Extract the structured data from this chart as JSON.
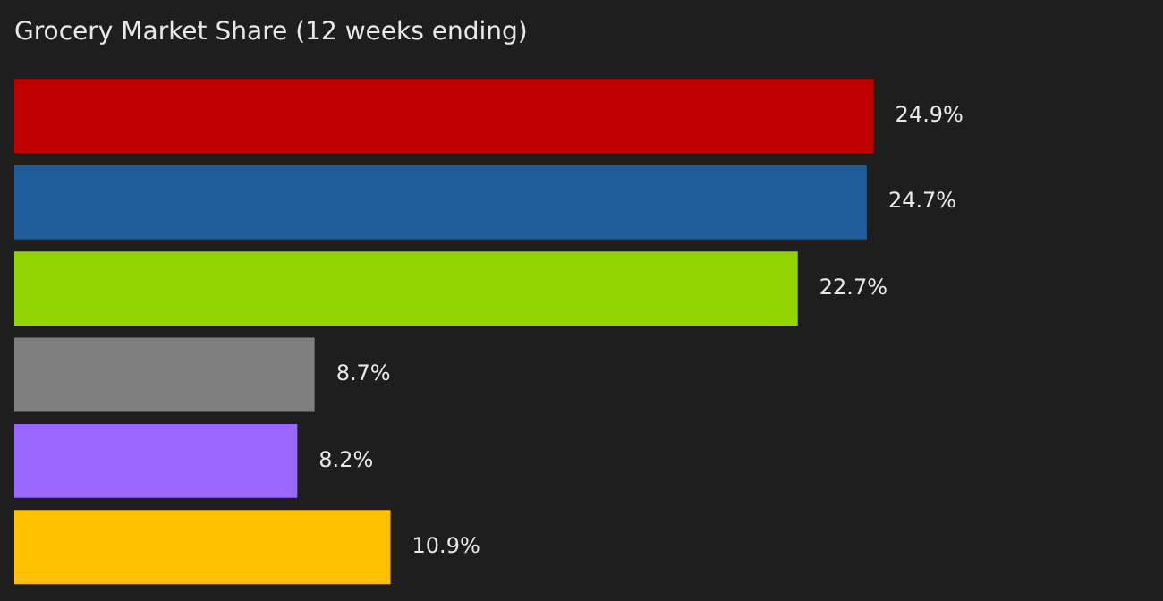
{
  "chart_data": {
    "type": "bar",
    "orientation": "horizontal",
    "title": "Grocery Market Share (12 weeks ending)",
    "categories": [
      null,
      null,
      null,
      null,
      null,
      null
    ],
    "values": [
      24.9,
      24.7,
      22.7,
      8.7,
      8.2,
      10.9
    ],
    "colors": [
      "#c00000",
      "#1f5c99",
      "#92d400",
      "#7f7f7f",
      "#9966ff",
      "#ffc000"
    ],
    "value_labels": [
      "24.9%",
      "24.7%",
      "22.7%",
      "8.7%",
      "8.2%",
      "10.9%"
    ]
  }
}
